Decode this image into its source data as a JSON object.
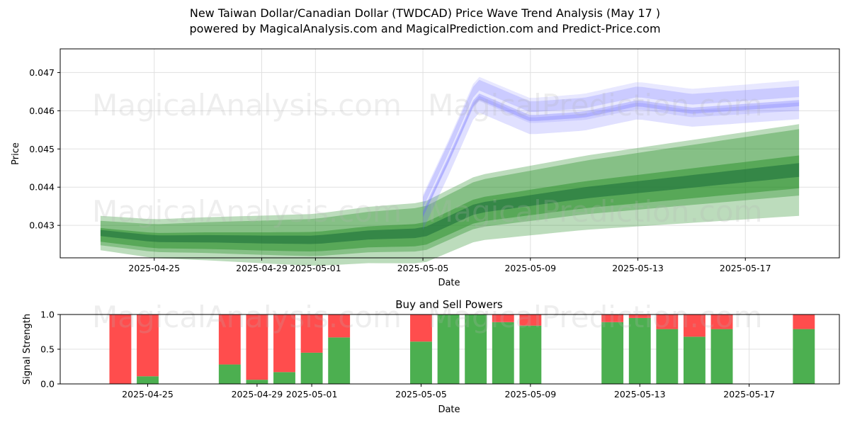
{
  "header": {
    "title_line1": "New Taiwan Dollar/Canadian Dollar (TWDCAD) Price Wave Trend Analysis (May 17 )",
    "title_line2": "powered by MagicalAnalysis.com and MagicalPrediction.com and Predict-Price.com"
  },
  "watermarks": [
    "MagicalAnalysis.com",
    "MagicalPrediction.com"
  ],
  "colors": {
    "history": "#228b22",
    "forecast": "#6464ff",
    "buy": "#4caf50",
    "sell": "#ff4d4d"
  },
  "chart_data": [
    {
      "type": "area",
      "title": "",
      "xlabel": "Date",
      "ylabel": "Price",
      "x_range": [
        "2025-04-22",
        "2025-05-20"
      ],
      "ylim": [
        0.04215,
        0.04762
      ],
      "x_ticks": [
        "2025-04-25",
        "2025-04-29",
        "2025-05-01",
        "2025-05-05",
        "2025-05-09",
        "2025-05-13",
        "2025-05-17"
      ],
      "y_ticks": [
        0.043,
        0.044,
        0.045,
        0.046,
        0.047
      ],
      "grid": true,
      "series": [
        {
          "role": "history",
          "x": [
            "2025-04-23",
            "2025-04-25",
            "2025-04-27",
            "2025-04-29",
            "2025-05-01",
            "2025-05-03",
            "2025-05-05",
            "2025-05-07",
            "2025-05-09",
            "2025-05-11",
            "2025-05-13",
            "2025-05-15",
            "2025-05-17",
            "2025-05-19"
          ],
          "y": [
            0.0428,
            0.04265,
            0.04265,
            0.04263,
            0.04262,
            0.04275,
            0.0428,
            0.04345,
            0.04365,
            0.04385,
            0.044,
            0.04415,
            0.0443,
            0.04445
          ]
        },
        {
          "role": "forecast",
          "x": [
            "2025-05-05",
            "2025-05-06",
            "2025-05-07",
            "2025-05-09",
            "2025-05-11",
            "2025-05-13",
            "2025-05-15",
            "2025-05-17",
            "2025-05-19"
          ],
          "y": [
            0.0433,
            0.0448,
            0.0464,
            0.0458,
            0.0459,
            0.0462,
            0.046,
            0.0461,
            0.0462
          ]
        }
      ]
    },
    {
      "type": "bar",
      "title": "Buy and Sell Powers",
      "xlabel": "Date",
      "ylabel": "Signal Strength",
      "ylim": [
        0,
        1.0
      ],
      "y_ticks": [
        0.0,
        0.5,
        1.0
      ],
      "x_ticks": [
        "2025-04-25",
        "2025-04-29",
        "2025-05-01",
        "2025-05-05",
        "2025-05-09",
        "2025-05-13",
        "2025-05-17"
      ],
      "dates": [
        "2025-04-24",
        "2025-04-25",
        "2025-04-28",
        "2025-04-29",
        "2025-04-30",
        "2025-05-01",
        "2025-05-02",
        "2025-05-05",
        "2025-05-06",
        "2025-05-07",
        "2025-05-08",
        "2025-05-09",
        "2025-05-12",
        "2025-05-13",
        "2025-05-14",
        "2025-05-15",
        "2025-05-16",
        "2025-05-19"
      ],
      "series": [
        {
          "name": "Buy",
          "values": [
            0.0,
            0.11,
            0.28,
            0.06,
            0.17,
            0.45,
            0.67,
            0.61,
            1.0,
            1.0,
            0.89,
            0.84,
            0.89,
            0.95,
            0.79,
            0.68,
            0.79,
            0.79
          ]
        },
        {
          "name": "Sell",
          "values": [
            1.0,
            0.89,
            0.72,
            0.94,
            0.83,
            0.55,
            0.33,
            0.39,
            0.0,
            0.0,
            0.11,
            0.16,
            0.11,
            0.05,
            0.21,
            0.32,
            0.21,
            0.21
          ]
        }
      ]
    }
  ]
}
